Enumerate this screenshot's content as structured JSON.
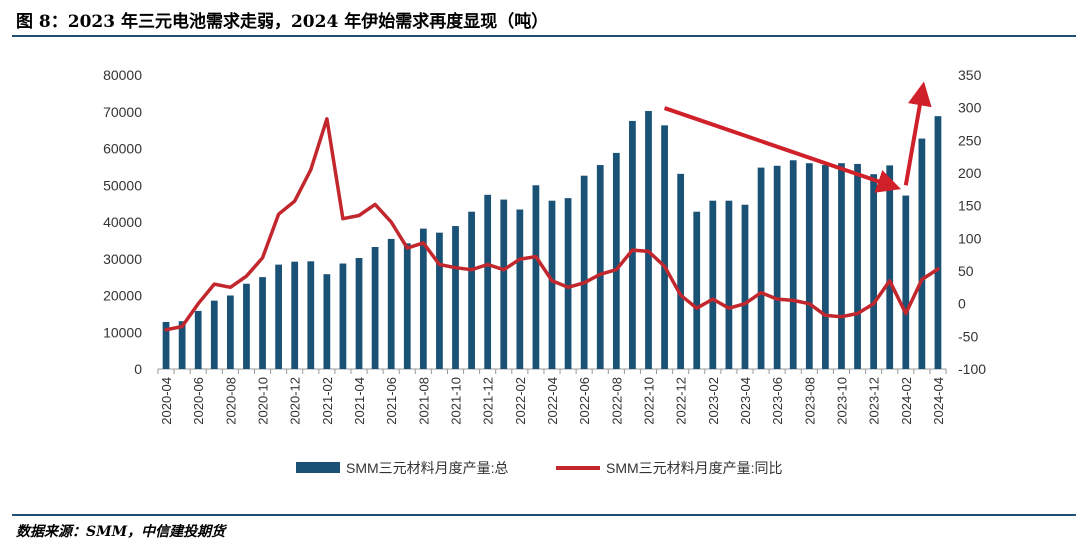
{
  "header": {
    "title": "图 8：2023 年三元电池需求走弱，2024 年伊始需求再度显现（吨）"
  },
  "footer": {
    "source": "数据来源：SMM，中信建投期货"
  },
  "colors": {
    "bar": "#1a5276",
    "line": "#c1272d",
    "arrow": "#d0202a",
    "rule": "#1f4e70"
  },
  "chart_data": {
    "type": "bar+line",
    "categories": [
      "2020-04",
      "2020-05",
      "2020-06",
      "2020-07",
      "2020-08",
      "2020-09",
      "2020-10",
      "2020-11",
      "2020-12",
      "2021-01",
      "2021-02",
      "2021-03",
      "2021-04",
      "2021-05",
      "2021-06",
      "2021-07",
      "2021-08",
      "2021-09",
      "2021-10",
      "2021-11",
      "2021-12",
      "2022-01",
      "2022-02",
      "2022-03",
      "2022-04",
      "2022-05",
      "2022-06",
      "2022-07",
      "2022-08",
      "2022-09",
      "2022-10",
      "2022-11",
      "2022-12",
      "2023-01",
      "2023-02",
      "2023-03",
      "2023-04",
      "2023-05",
      "2023-06",
      "2023-07",
      "2023-08",
      "2023-09",
      "2023-10",
      "2023-11",
      "2023-12",
      "2024-01",
      "2024-02",
      "2024-03",
      "2024-04"
    ],
    "x_tick_labels": [
      "2020-04",
      "2020-06",
      "2020-08",
      "2020-10",
      "2020-12",
      "2021-02",
      "2021-04",
      "2021-06",
      "2021-08",
      "2021-10",
      "2021-12",
      "2022-02",
      "2022-04",
      "2022-06",
      "2022-08",
      "2022-10",
      "2022-12",
      "2023-02",
      "2023-04",
      "2023-06",
      "2023-08",
      "2023-10",
      "2023-12",
      "2024-02",
      "2024-04"
    ],
    "series": [
      {
        "name": "SMM三元材料月度产量:总",
        "type": "bar",
        "axis": "left",
        "values": [
          12800,
          13000,
          15800,
          18600,
          20000,
          23200,
          25000,
          28400,
          29200,
          29300,
          25800,
          28700,
          30200,
          33200,
          35400,
          34200,
          38200,
          37100,
          38900,
          42800,
          47400,
          46100,
          43400,
          50000,
          45800,
          46500,
          52600,
          55500,
          58800,
          67500,
          70200,
          66300,
          53100,
          42800,
          45800,
          45800,
          44700,
          54800,
          55300,
          56800,
          56000,
          55500,
          56000,
          55800,
          53000,
          55400,
          47200,
          62700,
          68800
        ]
      },
      {
        "name": "SMM三元材料月度产量:同比",
        "type": "line",
        "axis": "right",
        "values": [
          -40,
          -35,
          0,
          30,
          25,
          42,
          70,
          137,
          157,
          205,
          283,
          130,
          135,
          152,
          125,
          85,
          93,
          60,
          55,
          52,
          60,
          52,
          68,
          72,
          35,
          25,
          32,
          45,
          52,
          82,
          80,
          57,
          13,
          -7,
          7,
          -7,
          0,
          17,
          7,
          5,
          0,
          -18,
          -20,
          -15,
          0,
          35,
          -15,
          37,
          53
        ]
      }
    ],
    "y_left": {
      "ylim": [
        0,
        80000
      ],
      "ticks": [
        0,
        10000,
        20000,
        30000,
        40000,
        50000,
        60000,
        70000,
        80000
      ]
    },
    "y_right": {
      "ylim": [
        -100,
        350
      ],
      "ticks": [
        -100,
        -50,
        0,
        50,
        100,
        150,
        200,
        250,
        300,
        350
      ]
    },
    "annotations": [
      {
        "type": "arrow",
        "from": {
          "x": "2022-11",
          "y_left": 71000
        },
        "to": {
          "x": "2024-01",
          "y_left": 50000
        }
      },
      {
        "type": "arrow",
        "from": {
          "x": "2024-02",
          "y_left": 50000
        },
        "to": {
          "x": "2024-03",
          "y_left": 75000
        }
      }
    ],
    "legend_position": "bottom",
    "grid": false
  }
}
